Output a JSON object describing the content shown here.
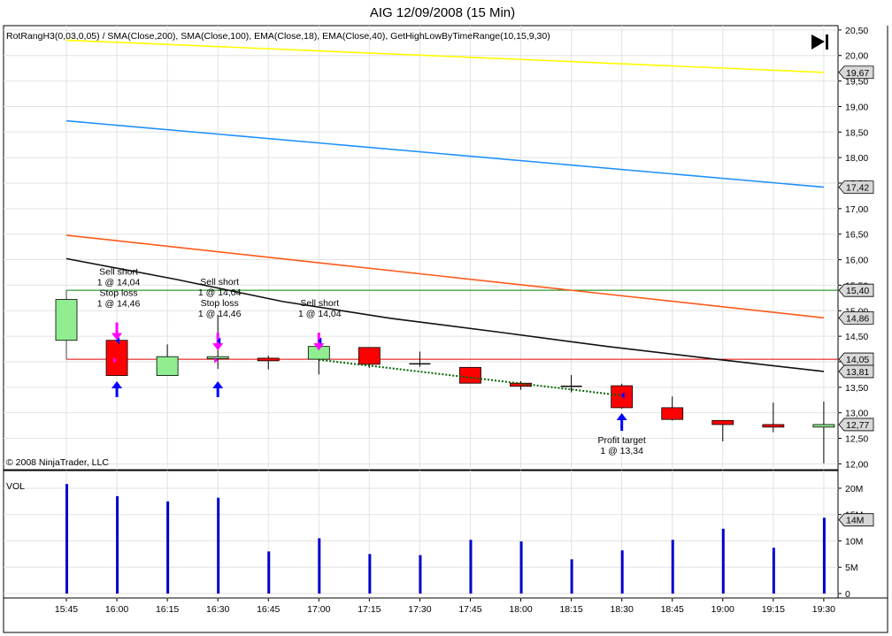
{
  "chart_data": {
    "type": "candlestick",
    "title": "AIG  12/09/2008 (15 Min)",
    "indicator_label": "RotRangH3(0,03,0,05) / SMA(Close,200), SMA(Close,100), EMA(Close,18), EMA(Close,40), GetHighLowByTimeRange(10,15,9,30)",
    "copyright": "© 2008 NinjaTrader, LLC",
    "volume_label": "VOL",
    "x_labels": [
      "15:45",
      "16:00",
      "16:15",
      "16:30",
      "16:45",
      "17:00",
      "17:15",
      "17:30",
      "17:45",
      "18:00",
      "18:15",
      "18:30",
      "18:45",
      "19:00",
      "19:15",
      "19:30"
    ],
    "price_ticks": [
      "20,50",
      "20,00",
      "19,50",
      "19,00",
      "18,50",
      "18,00",
      "17,50",
      "17,00",
      "16,50",
      "16,00",
      "15,50",
      "15,00",
      "14,50",
      "14,00",
      "13,50",
      "13,00",
      "12,50",
      "12,00"
    ],
    "price_range": [
      11.92,
      20.55
    ],
    "volume_ticks": [
      "20M",
      "15M",
      "10M",
      "5M",
      "0"
    ],
    "volume_range": [
      0,
      21000000
    ],
    "candles": [
      {
        "time": "15:45",
        "open": 14.42,
        "high": 15.22,
        "low": 14.42,
        "close": 15.22
      },
      {
        "time": "16:00",
        "open": 14.42,
        "high": 14.42,
        "low": 13.73,
        "close": 13.73
      },
      {
        "time": "16:15",
        "open": 13.73,
        "high": 14.34,
        "low": 13.73,
        "close": 14.1
      },
      {
        "time": "16:30",
        "open": 14.06,
        "high": 14.92,
        "low": 13.86,
        "close": 14.1
      },
      {
        "time": "16:45",
        "open": 14.07,
        "high": 14.12,
        "low": 13.85,
        "close": 14.02
      },
      {
        "time": "17:00",
        "open": 14.05,
        "high": 14.39,
        "low": 13.75,
        "close": 14.3
      },
      {
        "time": "17:15",
        "open": 14.28,
        "high": 14.28,
        "low": 13.88,
        "close": 13.95
      },
      {
        "time": "17:30",
        "open": 13.96,
        "high": 14.2,
        "low": 13.9,
        "close": 13.96
      },
      {
        "time": "17:45",
        "open": 13.89,
        "high": 13.89,
        "low": 13.58,
        "close": 13.58
      },
      {
        "time": "18:00",
        "open": 13.58,
        "high": 13.62,
        "low": 13.45,
        "close": 13.52
      },
      {
        "time": "18:15",
        "open": 13.52,
        "high": 13.74,
        "low": 13.4,
        "close": 13.52
      },
      {
        "time": "18:30",
        "open": 13.53,
        "high": 13.57,
        "low": 13.08,
        "close": 13.1
      },
      {
        "time": "18:45",
        "open": 13.1,
        "high": 13.32,
        "low": 12.85,
        "close": 12.87
      },
      {
        "time": "19:00",
        "open": 12.85,
        "high": 12.85,
        "low": 12.44,
        "close": 12.77
      },
      {
        "time": "19:15",
        "open": 12.77,
        "high": 13.2,
        "low": 12.62,
        "close": 12.72
      },
      {
        "time": "19:30",
        "open": 12.72,
        "high": 13.22,
        "low": 12.01,
        "close": 12.77
      }
    ],
    "volumes": [
      20800000,
      18500000,
      17500000,
      18200000,
      8000000,
      10500000,
      7500000,
      7300000,
      10200000,
      9900000,
      6500000,
      8200000,
      10200000,
      12300000,
      8700000,
      14400000
    ],
    "series": [
      {
        "name": "SMA(Close,200)",
        "color": "#ffff00",
        "points": [
          20.3,
          19.67
        ]
      },
      {
        "name": "SMA(Close,100)",
        "color": "#1e90ff",
        "points": [
          18.72,
          17.42
        ]
      },
      {
        "name": "EMA(Close,40)",
        "color": "#ff5a1a",
        "points": [
          16.48,
          14.86
        ]
      },
      {
        "name": "EMA(Close,18)",
        "color": "#111111",
        "points": [
          16.02,
          15.62,
          15.18,
          14.85,
          14.58,
          14.3,
          14.05,
          13.81
        ]
      }
    ],
    "levels": [
      {
        "name": "high",
        "value": 15.4,
        "color": "#008000"
      },
      {
        "name": "low",
        "value": 14.05,
        "color": "#e00000"
      }
    ],
    "price_markers": [
      {
        "label": "19,67",
        "value": 19.67
      },
      {
        "label": "17,42",
        "value": 17.42
      },
      {
        "label": "15,40",
        "value": 15.4
      },
      {
        "label": "14,86",
        "value": 14.86
      },
      {
        "label": "14,05",
        "value": 14.05
      },
      {
        "label": "13,81",
        "value": 13.81
      },
      {
        "label": "12,77",
        "value": 12.77
      }
    ],
    "volume_marker": {
      "label": "14M",
      "value": 14000000
    },
    "annotations": [
      {
        "bar": 1,
        "lines": [
          "Sell short",
          "1 @ 14,04",
          "Stop loss",
          "1 @ 14,46"
        ],
        "anchor": 14.25,
        "arrow": "down"
      },
      {
        "bar": 3,
        "lines": [
          "Sell short",
          "1 @ 14,04",
          "Stop loss",
          "1 @ 14,46"
        ],
        "anchor": 14.05,
        "arrow": "down"
      },
      {
        "bar": 5,
        "lines": [
          "Sell short",
          "1 @ 14,04"
        ],
        "anchor": 14.05,
        "arrow": "down"
      },
      {
        "bar": 11,
        "lines": [
          "Profit target",
          "1 @ 13,34"
        ],
        "anchor": 13.34,
        "arrow": "up"
      }
    ],
    "up_arrows_bars": [
      1,
      3
    ],
    "trade_line": [
      {
        "bar": 5,
        "price": 14.04
      },
      {
        "bar": 11,
        "price": 13.34
      }
    ]
  }
}
